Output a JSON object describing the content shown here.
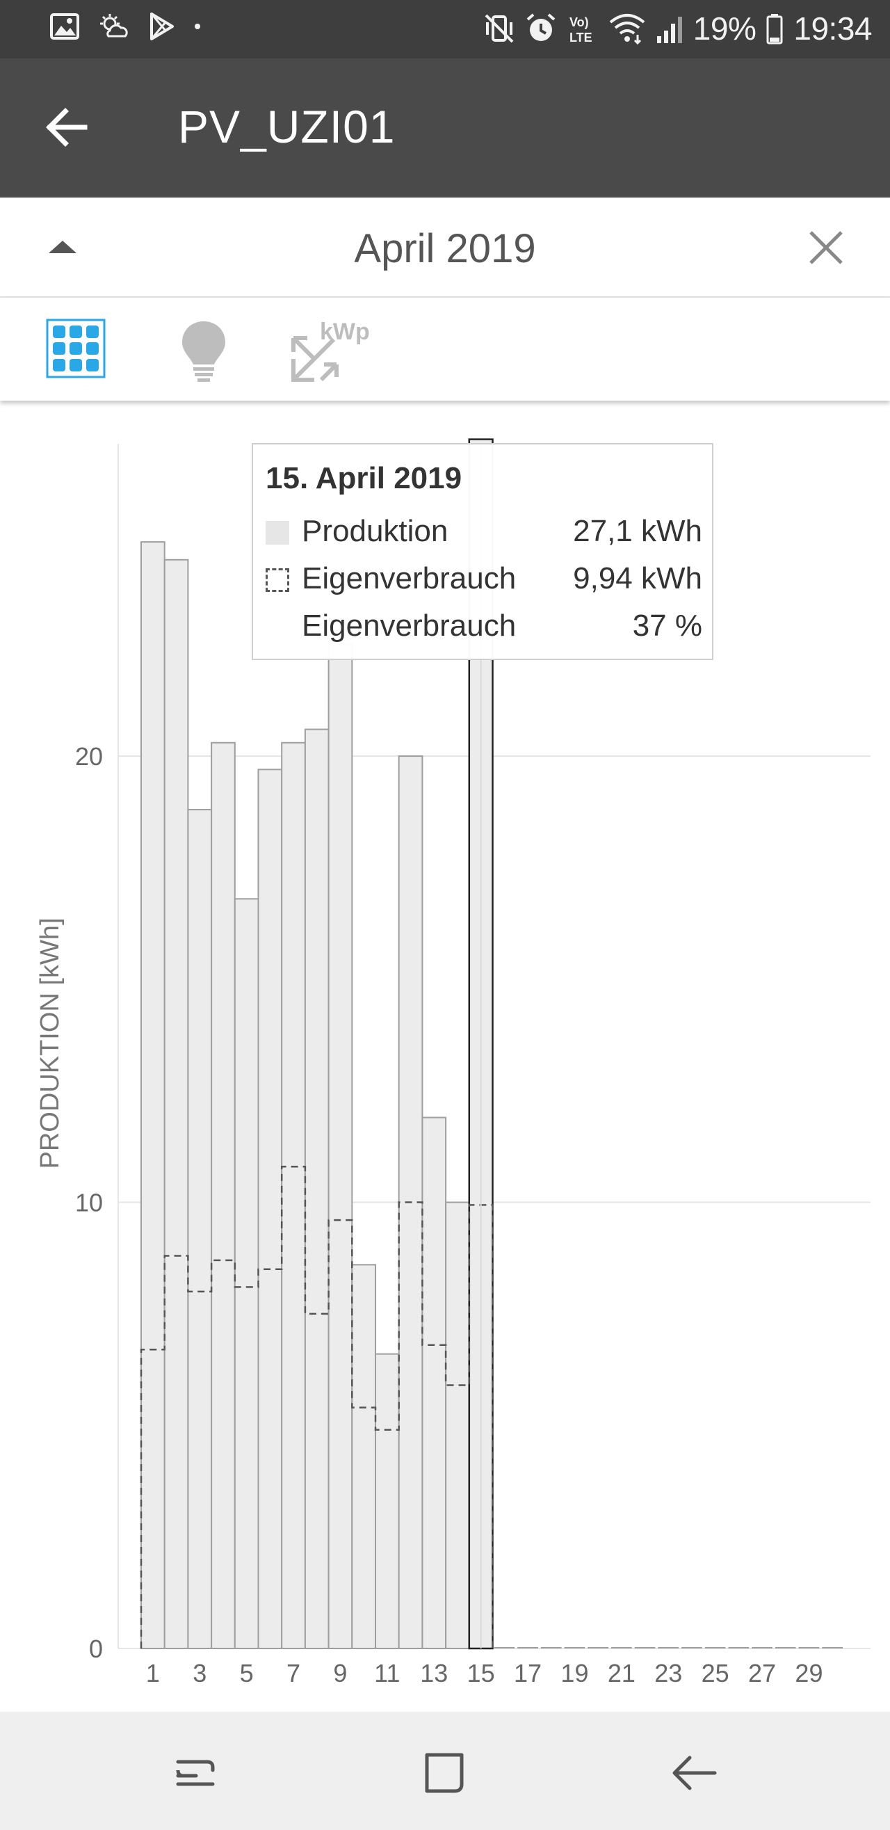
{
  "status_bar": {
    "battery_percent": "19%",
    "time": "19:34",
    "volte_label": "Vo) LTE",
    "icons_left": [
      "gallery-icon",
      "weather-icon",
      "play-store-icon",
      "dot-icon"
    ],
    "icons_right": [
      "mute-vibrate-icon",
      "alarm-icon",
      "volte-icon",
      "wifi-icon",
      "signal-icon",
      "battery-icon"
    ]
  },
  "app_bar": {
    "title": "PV_UZI01",
    "back_icon": "arrow-back-icon"
  },
  "month_header": {
    "label": "April 2019",
    "collapse_icon": "triangle-up-icon",
    "close_icon": "close-icon"
  },
  "toolbar": {
    "items": [
      {
        "name": "grid-view-icon",
        "active": true
      },
      {
        "name": "lightbulb-icon",
        "active": false
      },
      {
        "name": "kwp-scale-icon",
        "label": "kWp",
        "active": false
      }
    ],
    "accent_color": "#29a8e8",
    "inactive_color": "#bdbdbd"
  },
  "tooltip": {
    "title": "15. April 2019",
    "rows": [
      {
        "label": "Produktion",
        "value": "27,1 kWh",
        "swatch": "solid"
      },
      {
        "label": "Eigenverbrauch",
        "value": "9,94 kWh",
        "swatch": "dashed"
      },
      {
        "label": "Eigenverbrauch",
        "value": "37 %",
        "swatch": "none"
      }
    ]
  },
  "chart_data": {
    "type": "bar",
    "ylabel": "PRODUKTION [kWh]",
    "ylim": [
      0,
      27
    ],
    "yticks": [
      "0",
      "10",
      "20"
    ],
    "categories": [
      "1",
      "2",
      "3",
      "4",
      "5",
      "6",
      "7",
      "8",
      "9",
      "10",
      "11",
      "12",
      "13",
      "14",
      "15",
      "16",
      "17",
      "18",
      "19",
      "20",
      "21",
      "22",
      "23",
      "24",
      "25",
      "26",
      "27",
      "28",
      "29",
      "30"
    ],
    "xtick_labels": [
      "1",
      "3",
      "5",
      "7",
      "9",
      "11",
      "13",
      "15",
      "17",
      "19",
      "21",
      "23",
      "25",
      "27",
      "29"
    ],
    "series": [
      {
        "name": "Produktion",
        "style": "bar",
        "color": "#ececec",
        "values": [
          24.8,
          24.4,
          18.8,
          20.3,
          16.8,
          19.7,
          20.3,
          20.6,
          22.5,
          8.6,
          6.6,
          20.0,
          11.9,
          10.0,
          27.1,
          0,
          0,
          0,
          0,
          0,
          0,
          0,
          0,
          0,
          0,
          0,
          0,
          0,
          0,
          0
        ]
      },
      {
        "name": "Eigenverbrauch",
        "style": "dashed-step",
        "color": "#555555",
        "values": [
          6.7,
          8.8,
          8.0,
          8.7,
          8.1,
          8.5,
          10.8,
          7.5,
          9.6,
          5.4,
          4.9,
          10.0,
          6.8,
          5.9,
          9.94,
          0,
          0,
          0,
          0,
          0,
          0,
          0,
          0,
          0,
          0,
          0,
          0,
          0,
          0,
          0
        ]
      }
    ],
    "selected_category": "15",
    "grid": true
  },
  "nav_bar": {
    "items": [
      "recent-apps-icon",
      "home-icon",
      "back-icon"
    ]
  }
}
